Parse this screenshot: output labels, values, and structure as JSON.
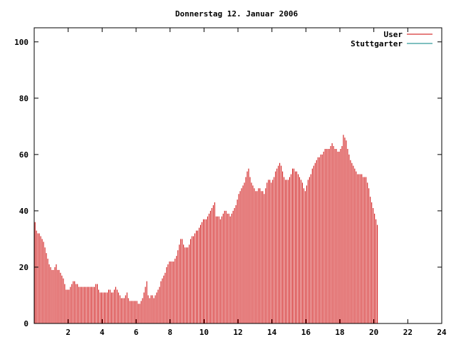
{
  "chart_data": {
    "type": "bar",
    "title": "Donnerstag 12. Januar 2006",
    "xlabel": "",
    "ylabel": "",
    "xlim": [
      0,
      24
    ],
    "ylim": [
      0,
      105
    ],
    "xticks": [
      2,
      4,
      6,
      8,
      10,
      12,
      14,
      16,
      18,
      20,
      22,
      24
    ],
    "yticks": [
      0,
      20,
      40,
      60,
      80,
      100
    ],
    "legend_position": "top-right",
    "grid": false,
    "series": [
      {
        "name": "User",
        "color": "#cc0000",
        "kind": "impulses",
        "interval": 0.0833,
        "values": [
          36,
          33,
          32,
          32,
          31,
          30,
          29,
          27,
          25,
          23,
          21,
          20,
          19,
          19,
          20,
          21,
          19,
          19,
          18,
          17,
          16,
          14,
          12,
          12,
          12,
          13,
          14,
          15,
          15,
          14,
          14,
          13,
          13,
          13,
          13,
          13,
          13,
          13,
          13,
          13,
          13,
          13,
          13,
          14,
          14,
          12,
          11,
          11,
          11,
          11,
          11,
          11,
          12,
          12,
          11,
          11,
          12,
          13,
          12,
          11,
          10,
          9,
          9,
          9,
          10,
          11,
          9,
          8,
          8,
          8,
          8,
          8,
          8,
          7,
          7,
          8,
          9,
          11,
          13,
          15,
          10,
          9,
          10,
          10,
          9,
          10,
          11,
          12,
          13,
          15,
          16,
          17,
          18,
          20,
          21,
          22,
          22,
          22,
          22,
          23,
          24,
          26,
          28,
          30,
          30,
          28,
          27,
          27,
          27,
          28,
          30,
          31,
          31,
          32,
          33,
          33,
          34,
          35,
          36,
          37,
          37,
          37,
          38,
          39,
          40,
          41,
          42,
          43,
          38,
          38,
          38,
          37,
          38,
          39,
          40,
          40,
          39,
          39,
          38,
          39,
          40,
          41,
          42,
          44,
          46,
          47,
          48,
          49,
          50,
          52,
          54,
          55,
          52,
          50,
          49,
          48,
          47,
          47,
          48,
          48,
          47,
          47,
          46,
          48,
          50,
          51,
          51,
          50,
          51,
          52,
          54,
          55,
          56,
          57,
          56,
          54,
          52,
          51,
          51,
          51,
          52,
          53,
          55,
          55,
          54,
          54,
          53,
          52,
          51,
          50,
          48,
          47,
          49,
          51,
          52,
          53,
          55,
          56,
          57,
          58,
          59,
          59,
          60,
          60,
          61,
          62,
          62,
          62,
          62,
          63,
          64,
          63,
          62,
          62,
          61,
          61,
          62,
          63,
          67,
          66,
          65,
          62,
          60,
          58,
          57,
          56,
          55,
          54,
          53,
          53,
          53,
          53,
          52,
          52,
          52,
          50,
          48,
          45,
          43,
          41,
          39,
          37,
          35
        ]
      },
      {
        "name": "Stuttgarter",
        "color": "#008080",
        "kind": "impulses",
        "values": []
      }
    ]
  }
}
